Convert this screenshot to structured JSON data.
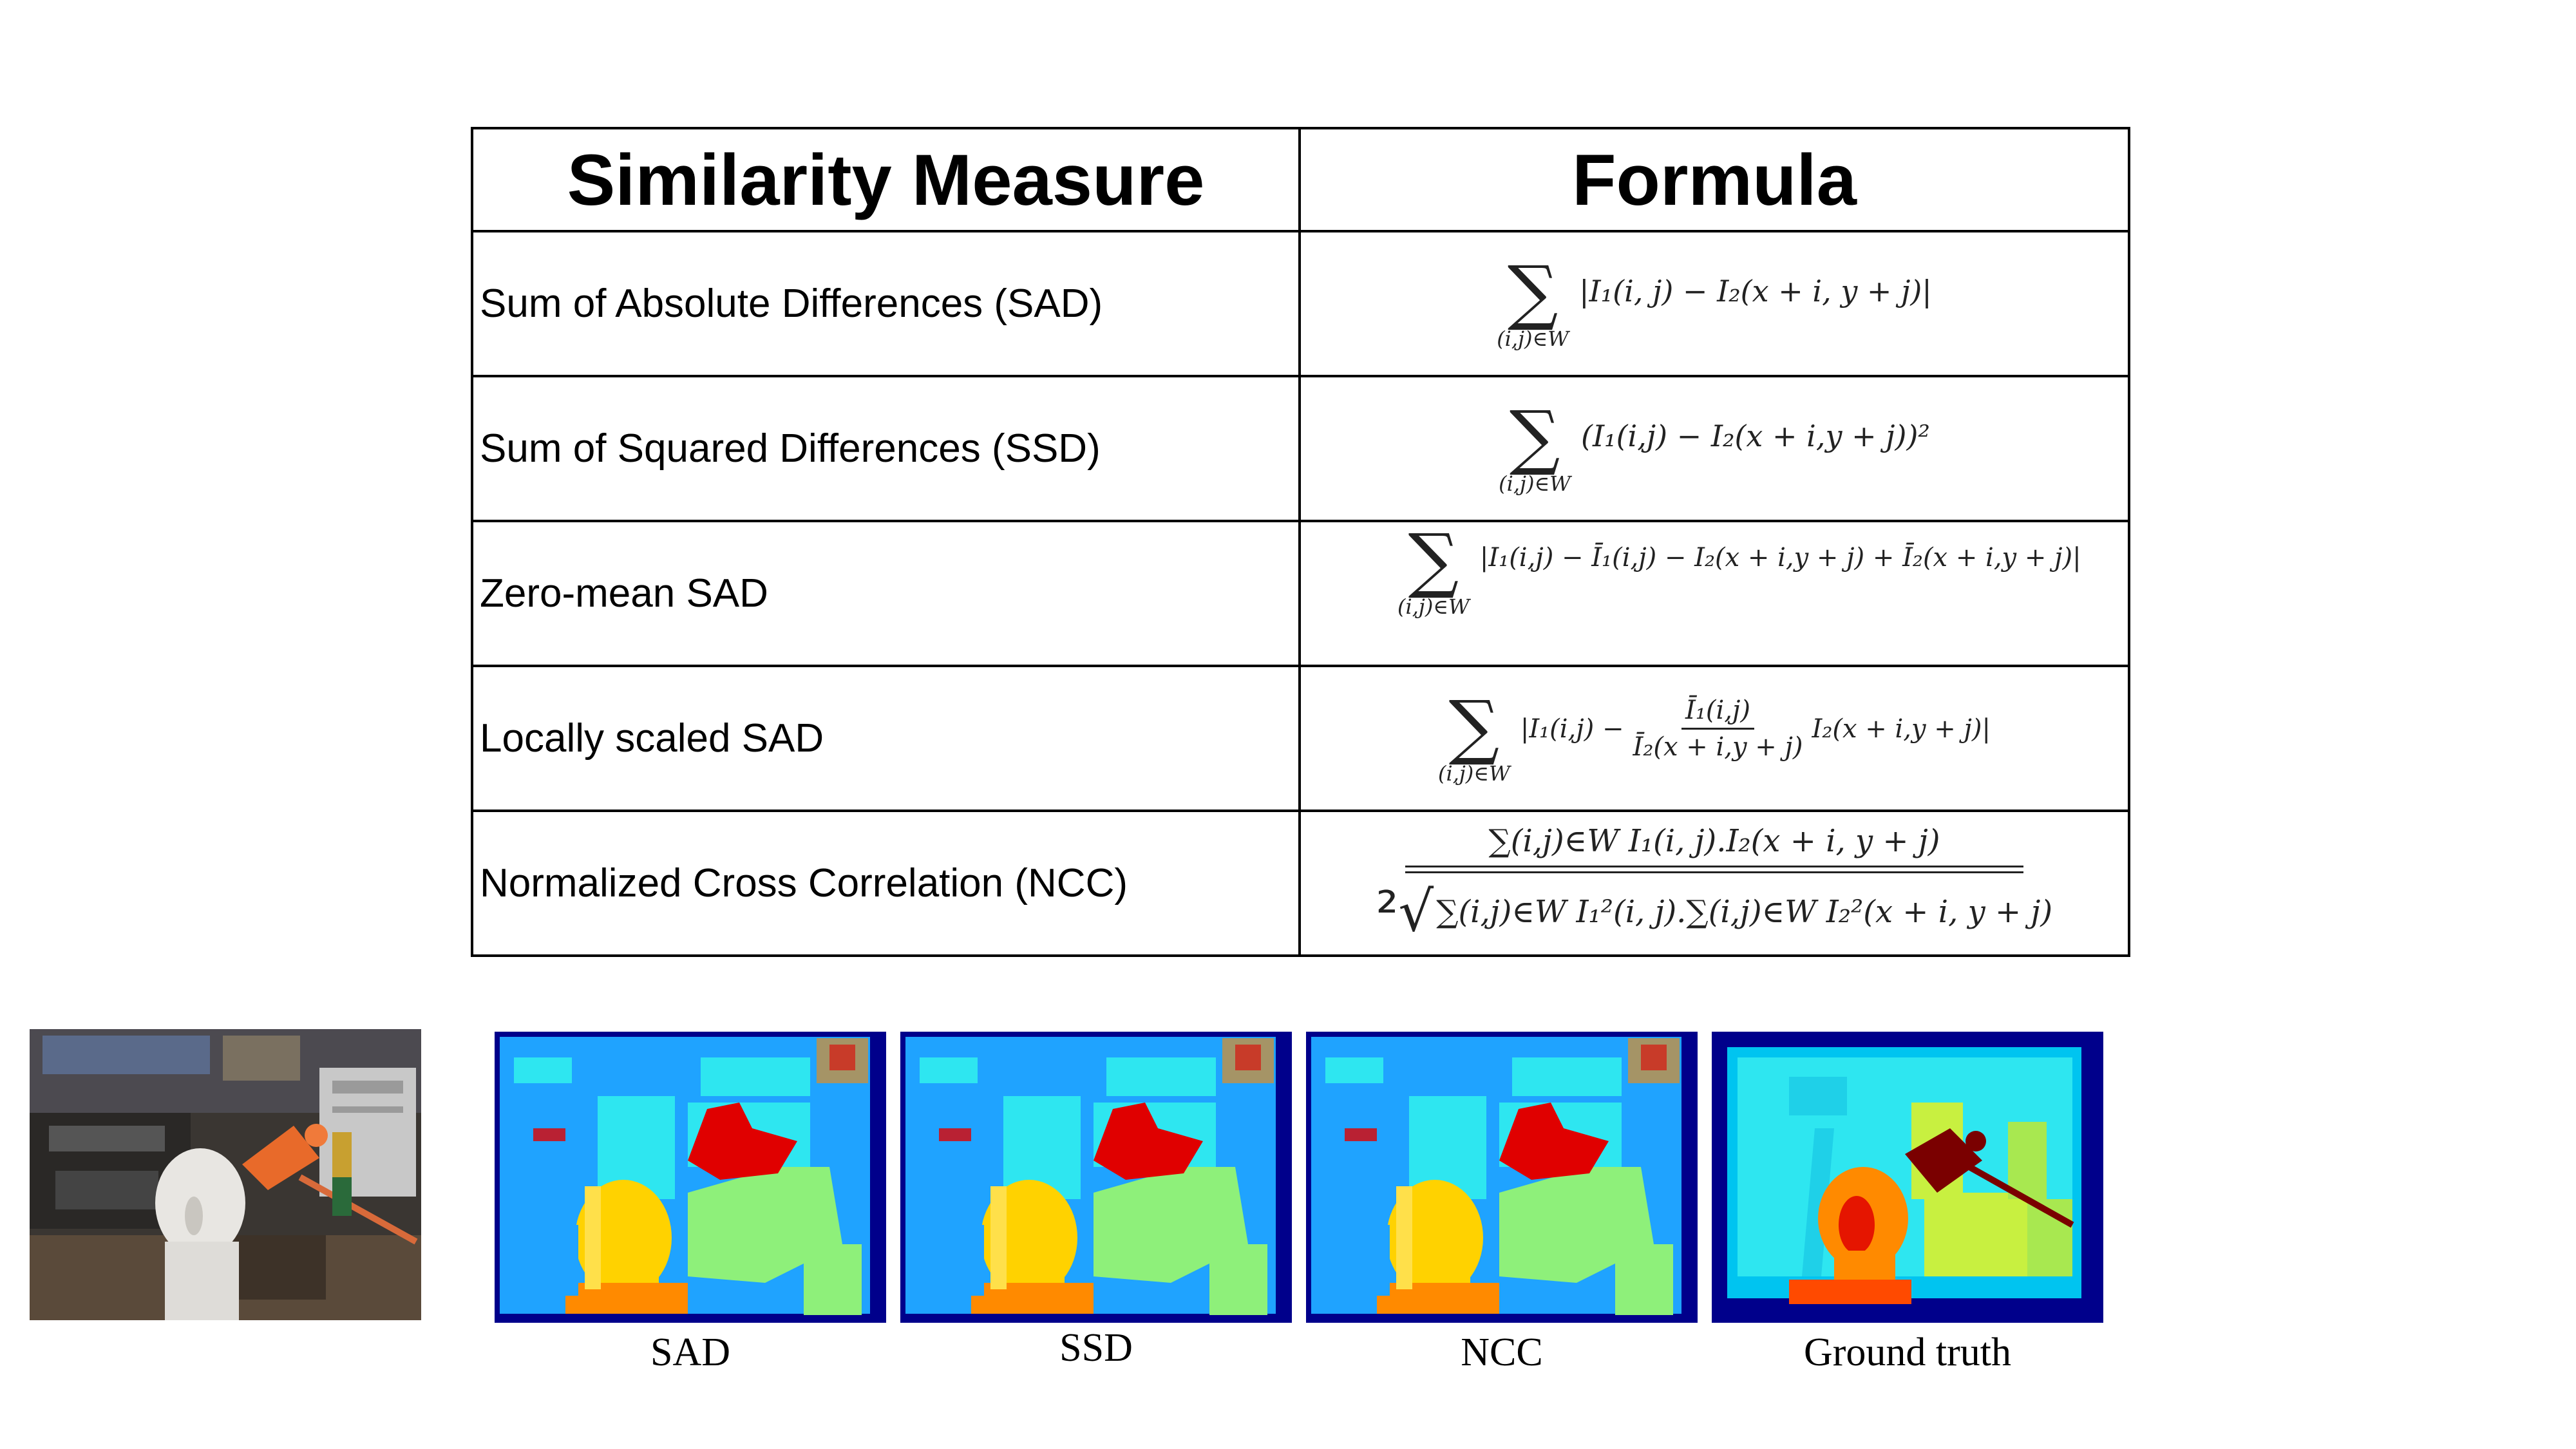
{
  "table": {
    "headers": [
      "Similarity Measure",
      "Formula"
    ],
    "rows": [
      {
        "measure": "Sum of Absolute Differences (SAD)"
      },
      {
        "measure": "Sum of Squared Differences (SSD)"
      },
      {
        "measure": "Zero-mean SAD"
      },
      {
        "measure": "Locally scaled SAD"
      },
      {
        "measure": "Normalized Cross Correlation (NCC)"
      }
    ]
  },
  "formulas": {
    "sum_symbol": "∑",
    "sum_subscript": "(i,j)∈W",
    "sad": "|I₁(i, j) − I₂(x + i, y + j)|",
    "ssd": "(I₁(i,j) − I₂(x + i,y + j))²",
    "zsad": "|I₁(i,j) − Ī₁(i,j) − I₂(x + i,y + j) + Ī₂(x + i,y + j)|",
    "lssad_left": "|I₁(i,j) −",
    "lssad_num": "Ī₁(i,j)",
    "lssad_den": "Ī₂(x + i,y + j)",
    "lssad_right": "I₂(x + i,y + j)|",
    "ncc_num": "∑(i,j)∈W I₁(i, j).I₂(x + i, y + j)",
    "ncc_root": "²√",
    "ncc_den": "∑(i,j)∈W I₁²(i, j).∑(i,j)∈W I₂²(x + i, y + j)"
  },
  "captions": [
    "SAD",
    "SSD",
    "NCC",
    "Ground truth"
  ],
  "colors": {
    "jet_dark_blue": "#00008b",
    "jet_blue": "#1fa3ff",
    "jet_cyan": "#2ee6f0",
    "jet_green": "#8ef07a",
    "jet_yellow": "#ffd200",
    "jet_orange": "#ff8a00",
    "jet_red": "#e00000",
    "jet_dark_red": "#7a0000"
  }
}
